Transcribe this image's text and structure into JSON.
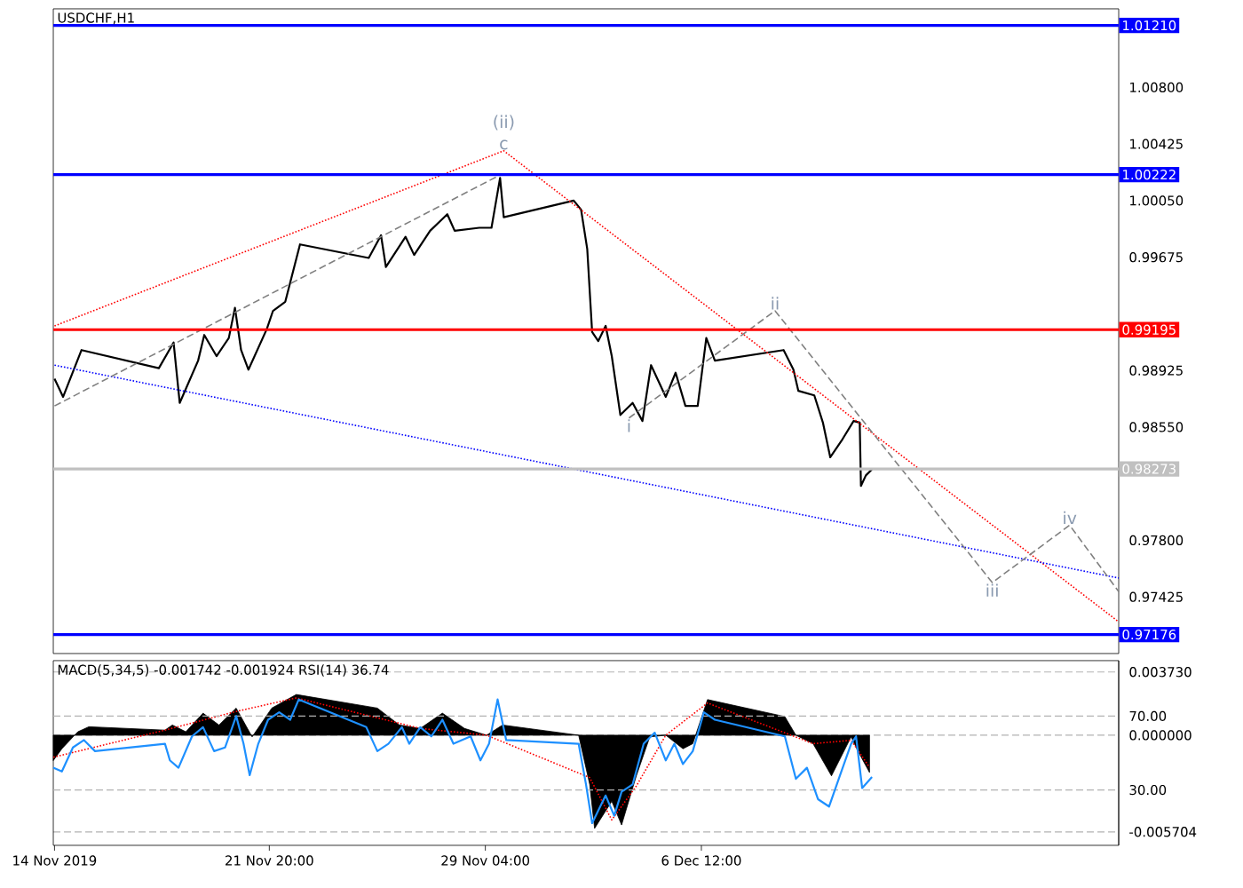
{
  "chart_data": [
    {
      "type": "line",
      "title": "USDCHF,H1",
      "xlim": [
        "2019-11-14T12:00",
        "2019-12-20T16:00"
      ],
      "ylim": [
        0.9705,
        1.0132
      ],
      "tick_labels": "y",
      "yticks": [
        {
          "value": 1.008,
          "label": "1.00800"
        },
        {
          "value": 1.00425,
          "label": "1.00425"
        },
        {
          "value": 1.0005,
          "label": "1.00050"
        },
        {
          "value": 0.99675,
          "label": "0.99675"
        },
        {
          "value": 0.98925,
          "label": "0.98925"
        },
        {
          "value": 0.9855,
          "label": "0.98550"
        },
        {
          "value": 0.978,
          "label": "0.97800"
        },
        {
          "value": 0.97425,
          "label": "0.97425"
        }
      ],
      "series": [
        {
          "color": "#000000",
          "line_style": "solid",
          "x": [
            "2019-11-14T13:00",
            "2019-11-14T20:00",
            "2019-11-15T11:00",
            "2019-11-18T02:00",
            "2019-11-18T14:00",
            "2019-11-18T19:00",
            "2019-11-19T10:00",
            "2019-11-19T15:00",
            "2019-11-20T01:00",
            "2019-11-20T11:00",
            "2019-11-20T16:00",
            "2019-11-20T21:00",
            "2019-11-21T03:00",
            "2019-11-21T18:00",
            "2019-11-21T23:00",
            "2019-11-22T09:00",
            "2019-11-22T21:00",
            "2019-11-25T05:00",
            "2019-11-25T15:00",
            "2019-11-25T19:00",
            "2019-11-26T11:00",
            "2019-11-26T18:00",
            "2019-11-27T07:00",
            "2019-11-27T21:00",
            "2019-11-28T03:00",
            "2019-11-28T23:00",
            "2019-11-29T09:00",
            "2019-11-29T16:00",
            "2019-11-29T19:00",
            "2019-12-02T04:00",
            "2019-12-02T10:00",
            "2019-12-02T15:00",
            "2019-12-02T19:00",
            "2019-12-03T00:00",
            "2019-12-03T06:00",
            "2019-12-03T11:00",
            "2019-12-03T18:00",
            "2019-12-04T04:00",
            "2019-12-04T12:00",
            "2019-12-04T19:00",
            "2019-12-05T07:00",
            "2019-12-05T15:00",
            "2019-12-05T23:00",
            "2019-12-06T09:00",
            "2019-12-06T16:00",
            "2019-12-06T23:00",
            "2019-12-09T07:00",
            "2019-12-09T15:00",
            "2019-12-09T19:00",
            "2019-12-10T08:00",
            "2019-12-10T15:00",
            "2019-12-10T21:00",
            "2019-12-11T07:00",
            "2019-12-11T16:00",
            "2019-12-11T21:00",
            "2019-12-11T22:00",
            "2019-12-12T02:00",
            "2019-12-12T07:00"
          ],
          "values": [
            0.9887,
            0.9875,
            0.9906,
            0.9894,
            0.9911,
            0.9871,
            0.9899,
            0.9916,
            0.9902,
            0.9914,
            0.9934,
            0.9906,
            0.9893,
            0.992,
            0.9932,
            0.9938,
            0.9976,
            0.9967,
            0.9982,
            0.9961,
            0.9981,
            0.9969,
            0.9985,
            0.9996,
            0.9985,
            0.9987,
            0.9987,
            1.002,
            0.9994,
            1.0005,
            0.9999,
            0.9973,
            0.9918,
            0.9912,
            0.9922,
            0.9902,
            0.9863,
            0.9871,
            0.9859,
            0.9896,
            0.9875,
            0.9891,
            0.9869,
            0.9869,
            0.9914,
            0.9899,
            0.9906,
            0.9893,
            0.9879,
            0.9876,
            0.9858,
            0.9835,
            0.9847,
            0.9859,
            0.9858,
            0.9816,
            0.9823,
            0.9827
          ]
        },
        {
          "color": "#ff0000",
          "line_style": "dotted",
          "x": [
            "2019-11-14T13:00",
            "2019-11-29T19:00",
            "2019-12-20T16:00"
          ],
          "values": [
            0.9922,
            1.0038,
            0.9726
          ]
        },
        {
          "color": "#0000ff",
          "line_style": "dotted",
          "x": [
            "2019-11-14T13:00",
            "2019-12-20T16:00"
          ],
          "values": [
            0.9896,
            0.9755
          ]
        },
        {
          "color": "#808080",
          "line_style": "dashed",
          "x": [
            "2019-11-14T13:00",
            "2019-11-29T16:00"
          ],
          "values": [
            0.9869,
            1.0022
          ]
        },
        {
          "color": "#808080",
          "line_style": "dashed",
          "x": [
            "2019-12-04T01:00",
            "2019-12-09T00:00",
            "2019-12-16T09:00",
            "2019-12-19T00:00",
            "2019-12-20T16:00"
          ],
          "values": [
            0.9861,
            0.9932,
            0.9752,
            0.979,
            0.9746
          ]
        }
      ],
      "ref_lines": [
        {
          "axis": "y",
          "value": 1.0121,
          "label": "1.01210",
          "color": "#0000ff",
          "line_style": "solid"
        },
        {
          "axis": "y",
          "value": 1.00222,
          "label": "1.00222",
          "color": "#0000ff",
          "line_style": "solid"
        },
        {
          "axis": "y",
          "value": 0.99195,
          "label": "0.99195",
          "color": "#ff0000",
          "line_style": "solid"
        },
        {
          "axis": "y",
          "value": 0.98273,
          "label": "0.98273",
          "color": "#c0c0c0",
          "line_style": "solid"
        },
        {
          "axis": "y",
          "value": 0.97176,
          "label": "0.97176",
          "color": "#0000ff",
          "line_style": "solid"
        }
      ],
      "annotations": [
        {
          "text": "(ii)",
          "x": "2019-11-29T19:00",
          "y": 1.0038
        },
        {
          "text": "c",
          "x": "2019-11-29T19:00",
          "y": 1.0038
        },
        {
          "text": "i",
          "x": "2019-12-04T01:00",
          "y": 0.9861
        },
        {
          "text": "ii",
          "x": "2019-12-09T00:00",
          "y": 0.9932
        },
        {
          "text": "iii",
          "x": "2019-12-16T09:00",
          "y": 0.9752
        },
        {
          "text": "iv",
          "x": "2019-12-19T00:00",
          "y": 0.979
        }
      ]
    },
    {
      "type": "area",
      "title": "MACD(5,34,5) -0.001742 -0.001924 RSI(14) 36.74",
      "xlim": [
        "2019-11-14T12:00",
        "2019-12-20T16:00"
      ],
      "ylim": [
        -0.0065,
        0.0044
      ],
      "y2lim": [
        0,
        100
      ],
      "xticks": [
        {
          "value": "2019-11-14T13:00",
          "label": "14 Nov 2019"
        },
        {
          "value": "2019-11-21T20:00",
          "label": "21 Nov 20:00"
        },
        {
          "value": "2019-11-29T04:00",
          "label": "29 Nov 04:00"
        },
        {
          "value": "2019-12-06T12:00",
          "label": "6 Dec 12:00"
        }
      ],
      "yticks": [
        {
          "value": 0.00373,
          "label": "0.003730"
        },
        {
          "value": 0,
          "label": "0.000000"
        },
        {
          "value": -0.005704,
          "label": "-0.005704"
        }
      ],
      "y2ticks": [
        {
          "value": 70,
          "label": "70.00"
        },
        {
          "value": 30,
          "label": "30.00"
        }
      ],
      "grid": "y",
      "series": [
        {
          "type": "area",
          "color": "#000000",
          "x": [
            "2019-11-14T12:00",
            "2019-11-14T19:00",
            "2019-11-15T08:00",
            "2019-11-15T17:00",
            "2019-11-18T07:00",
            "2019-11-18T13:00",
            "2019-11-19T00:00",
            "2019-11-19T14:00",
            "2019-11-20T03:00",
            "2019-11-20T17:00",
            "2019-11-21T06:00",
            "2019-11-21T22:00",
            "2019-11-22T18:00",
            "2019-11-25T12:00",
            "2019-11-26T06:00",
            "2019-11-26T23:00",
            "2019-11-27T17:00",
            "2019-11-28T11:00",
            "2019-11-29T05:00",
            "2019-11-29T18:00",
            "2019-12-02T08:00",
            "2019-12-02T17:00",
            "2019-12-02T21:00",
            "2019-12-03T11:00",
            "2019-12-03T19:00",
            "2019-12-04T07:00",
            "2019-12-04T18:00",
            "2019-12-05T07:00",
            "2019-12-05T21:00",
            "2019-12-06T05:00",
            "2019-12-06T17:00",
            "2019-12-09T08:00",
            "2019-12-09T17:00",
            "2019-12-10T07:00",
            "2019-12-10T22:00",
            "2019-12-11T14:00",
            "2019-12-11T20:00",
            "2019-12-12T05:00"
          ],
          "values": [
            -0.0015,
            -0.0008,
            0.0002,
            0.0005,
            0.0003,
            0.0006,
            0.0002,
            0.0013,
            0.0006,
            0.0016,
            -0.0001,
            0.0016,
            0.0024,
            0.0016,
            0.0006,
            0.0004,
            0.0013,
            0.0004,
            0,
            0.0006,
            0,
            -0.0029,
            -0.0055,
            -0.0039,
            -0.0053,
            -0.0024,
            -0.0001,
            0,
            -0.0008,
            -0.0005,
            0.0021,
            0.0011,
            0,
            -0.0005,
            -0.0024,
            -0.0001,
            -0.001,
            -0.0022
          ]
        },
        {
          "type": "line",
          "color": "#ff0000",
          "line_style": "dotted",
          "x": [
            "2019-11-14T12:00",
            "2019-11-18T07:00",
            "2019-11-20T17:00",
            "2019-11-22T18:00",
            "2019-11-26T23:00",
            "2019-11-29T05:00",
            "2019-12-02T17:00",
            "2019-12-03T11:00",
            "2019-12-04T07:00",
            "2019-12-05T07:00",
            "2019-12-06T17:00",
            "2019-12-10T07:00",
            "2019-12-11T14:00",
            "2019-12-12T05:00"
          ],
          "values": [
            -0.0013,
            0.0003,
            0.0014,
            0.0022,
            0.0004,
            0,
            -0.0025,
            -0.005,
            -0.003,
            0,
            0.0019,
            -0.0005,
            -0.0003,
            -0.0019
          ]
        },
        {
          "type": "line",
          "axis": "y2",
          "color": "#1e90ff",
          "line_style": "solid",
          "x": [
            "2019-11-14T12:00",
            "2019-11-14T19:00",
            "2019-11-15T04:00",
            "2019-11-15T13:00",
            "2019-11-15T22:00",
            "2019-11-18T07:00",
            "2019-11-18T11:00",
            "2019-11-18T18:00",
            "2019-11-19T05:00",
            "2019-11-19T14:00",
            "2019-11-19T23:00",
            "2019-11-20T08:00",
            "2019-11-20T17:00",
            "2019-11-20T23:00",
            "2019-11-21T04:00",
            "2019-11-21T11:00",
            "2019-11-21T19:00",
            "2019-11-22T04:00",
            "2019-11-22T13:00",
            "2019-11-22T20:00",
            "2019-11-25T03:00",
            "2019-11-25T12:00",
            "2019-11-25T21:00",
            "2019-11-26T08:00",
            "2019-11-26T14:00",
            "2019-11-26T23:00",
            "2019-11-27T08:00",
            "2019-11-27T17:00",
            "2019-11-28T02:00",
            "2019-11-28T16:00",
            "2019-11-29T00:00",
            "2019-11-29T07:00",
            "2019-11-29T14:00",
            "2019-11-29T21:00",
            "2019-12-02T08:00",
            "2019-12-02T14:00",
            "2019-12-02T19:00",
            "2019-12-03T06:00",
            "2019-12-03T13:00",
            "2019-12-03T19:00",
            "2019-12-04T04:00",
            "2019-12-04T13:00",
            "2019-12-04T22:00",
            "2019-12-05T07:00",
            "2019-12-05T14:00",
            "2019-12-05T21:00",
            "2019-12-06T05:00",
            "2019-12-06T14:00",
            "2019-12-06T23:00",
            "2019-12-09T08:00",
            "2019-12-09T17:00",
            "2019-12-10T02:00",
            "2019-12-10T11:00",
            "2019-12-10T20:00",
            "2019-12-11T05:00",
            "2019-12-11T14:00",
            "2019-12-11T18:00",
            "2019-12-11T23:00",
            "2019-12-12T07:00"
          ],
          "values": [
            42,
            40,
            53,
            57,
            51,
            55,
            46,
            42,
            59,
            64,
            51,
            53,
            70,
            55,
            38,
            55,
            68,
            72,
            68,
            79,
            64,
            51,
            55,
            64,
            55,
            64,
            59,
            68,
            55,
            59,
            46,
            55,
            79,
            57,
            55,
            33,
            12,
            27,
            16,
            29,
            33,
            55,
            61,
            46,
            55,
            44,
            51,
            72,
            68,
            59,
            36,
            42,
            25,
            21,
            38,
            55,
            59,
            31,
            37
          ]
        }
      ]
    }
  ]
}
